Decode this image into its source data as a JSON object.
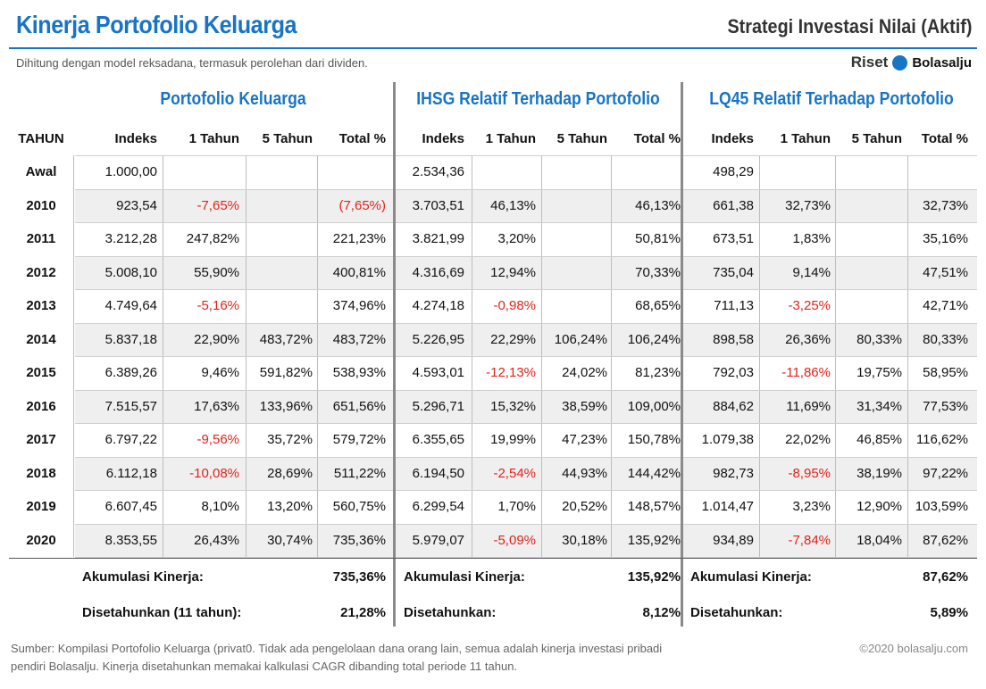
{
  "header": {
    "title": "Kinerja Portofolio Keluarga",
    "strategy": "Strategi Investasi Nilai (Aktif)",
    "subtitle": "Dihitung dengan model reksadana, termasuk perolehan dari dividen.",
    "brand_riset": "Riset",
    "brand_name": "Bolasalju"
  },
  "groups": {
    "portfolio": "Portofolio Keluarga",
    "ihsg": "IHSG Relatif Terhadap Portofolio",
    "lq45": "LQ45 Relatif Terhadap Portofolio"
  },
  "columns": {
    "year": "TAHUN",
    "index": "Indeks",
    "one_year": "1 Tahun",
    "five_year": "5 Tahun",
    "total": "Total %"
  },
  "chart_data": {
    "type": "table",
    "rows": [
      {
        "year": "Awal",
        "pk": [
          "1.000,00",
          "",
          "",
          ""
        ],
        "ihsg": [
          "2.534,36",
          "",
          "",
          ""
        ],
        "lq45": [
          "498,29",
          "",
          "",
          ""
        ]
      },
      {
        "year": "2010",
        "pk": [
          "923,54",
          "-7,65%",
          "",
          "(7,65%)"
        ],
        "ihsg": [
          "3.703,51",
          "46,13%",
          "",
          "46,13%"
        ],
        "lq45": [
          "661,38",
          "32,73%",
          "",
          "32,73%"
        ]
      },
      {
        "year": "2011",
        "pk": [
          "3.212,28",
          "247,82%",
          "",
          "221,23%"
        ],
        "ihsg": [
          "3.821,99",
          "3,20%",
          "",
          "50,81%"
        ],
        "lq45": [
          "673,51",
          "1,83%",
          "",
          "35,16%"
        ]
      },
      {
        "year": "2012",
        "pk": [
          "5.008,10",
          "55,90%",
          "",
          "400,81%"
        ],
        "ihsg": [
          "4.316,69",
          "12,94%",
          "",
          "70,33%"
        ],
        "lq45": [
          "735,04",
          "9,14%",
          "",
          "47,51%"
        ]
      },
      {
        "year": "2013",
        "pk": [
          "4.749,64",
          "-5,16%",
          "",
          "374,96%"
        ],
        "ihsg": [
          "4.274,18",
          "-0,98%",
          "",
          "68,65%"
        ],
        "lq45": [
          "711,13",
          "-3,25%",
          "",
          "42,71%"
        ]
      },
      {
        "year": "2014",
        "pk": [
          "5.837,18",
          "22,90%",
          "483,72%",
          "483,72%"
        ],
        "ihsg": [
          "5.226,95",
          "22,29%",
          "106,24%",
          "106,24%"
        ],
        "lq45": [
          "898,58",
          "26,36%",
          "80,33%",
          "80,33%"
        ]
      },
      {
        "year": "2015",
        "pk": [
          "6.389,26",
          "9,46%",
          "591,82%",
          "538,93%"
        ],
        "ihsg": [
          "4.593,01",
          "-12,13%",
          "24,02%",
          "81,23%"
        ],
        "lq45": [
          "792,03",
          "-11,86%",
          "19,75%",
          "58,95%"
        ]
      },
      {
        "year": "2016",
        "pk": [
          "7.515,57",
          "17,63%",
          "133,96%",
          "651,56%"
        ],
        "ihsg": [
          "5.296,71",
          "15,32%",
          "38,59%",
          "109,00%"
        ],
        "lq45": [
          "884,62",
          "11,69%",
          "31,34%",
          "77,53%"
        ]
      },
      {
        "year": "2017",
        "pk": [
          "6.797,22",
          "-9,56%",
          "35,72%",
          "579,72%"
        ],
        "ihsg": [
          "6.355,65",
          "19,99%",
          "47,23%",
          "150,78%"
        ],
        "lq45": [
          "1.079,38",
          "22,02%",
          "46,85%",
          "116,62%"
        ]
      },
      {
        "year": "2018",
        "pk": [
          "6.112,18",
          "-10,08%",
          "28,69%",
          "511,22%"
        ],
        "ihsg": [
          "6.194,50",
          "-2,54%",
          "44,93%",
          "144,42%"
        ],
        "lq45": [
          "982,73",
          "-8,95%",
          "38,19%",
          "97,22%"
        ]
      },
      {
        "year": "2019",
        "pk": [
          "6.607,45",
          "8,10%",
          "13,20%",
          "560,75%"
        ],
        "ihsg": [
          "6.299,54",
          "1,70%",
          "20,52%",
          "148,57%"
        ],
        "lq45": [
          "1.014,47",
          "3,23%",
          "12,90%",
          "103,59%"
        ]
      },
      {
        "year": "2020",
        "pk": [
          "8.353,55",
          "26,43%",
          "30,74%",
          "735,36%"
        ],
        "ihsg": [
          "5.979,07",
          "-5,09%",
          "30,18%",
          "135,92%"
        ],
        "lq45": [
          "934,89",
          "-7,84%",
          "18,04%",
          "87,62%"
        ]
      }
    ],
    "negative_color": "#e2231a"
  },
  "summary": {
    "acc_label": "Akumulasi Kinerja:",
    "pk_acc": "735,36%",
    "ihsg_acc": "135,92%",
    "lq45_acc": "87,62%",
    "pk_ann_label": "Disetahunkan (11 tahun):",
    "ann_label": "Disetahunkan:",
    "pk_ann": "21,28%",
    "ihsg_ann": "8,12%",
    "lq45_ann": "5,89%"
  },
  "footer": {
    "source": "Sumber: Kompilasi Portofolio Keluarga (privat0. Tidak ada pengelolaan dana orang lain, semua adalah kinerja investasi pribadi pendiri Bolasalju. Kinerja disetahunkan memakai kalkulasi CAGR dibanding total periode 11 tahun.",
    "copyright": "©2020 bolasalju.com"
  },
  "colors": {
    "accent": "#1874c4",
    "shade": "#efefef"
  }
}
